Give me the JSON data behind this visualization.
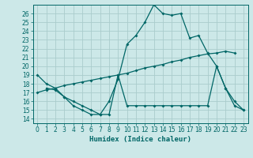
{
  "title": "",
  "xlabel": "Humidex (Indice chaleur)",
  "bg_color": "#cce8e8",
  "grid_color": "#aacccc",
  "line_color": "#006666",
  "xlim": [
    -0.5,
    23.5
  ],
  "ylim": [
    13.5,
    27.0
  ],
  "yticks": [
    14,
    15,
    16,
    17,
    18,
    19,
    20,
    21,
    22,
    23,
    24,
    25,
    26
  ],
  "xticks": [
    0,
    1,
    2,
    3,
    4,
    5,
    6,
    7,
    8,
    9,
    10,
    11,
    12,
    13,
    14,
    15,
    16,
    17,
    18,
    19,
    20,
    21,
    22,
    23
  ],
  "line1_x": [
    0,
    1,
    2,
    3,
    4,
    5,
    6,
    7,
    8,
    9,
    10,
    11,
    12,
    13,
    14,
    15,
    16,
    17,
    18,
    19,
    20,
    21,
    22,
    23
  ],
  "line1_y": [
    19,
    18,
    17.5,
    16.5,
    15.5,
    15,
    14.5,
    14.5,
    16,
    18.5,
    22.5,
    23.5,
    25,
    27,
    26,
    25.8,
    26,
    23.2,
    23.5,
    21.5,
    20,
    17.5,
    16,
    15
  ],
  "line2_x": [
    0,
    1,
    2,
    3,
    4,
    5,
    6,
    7,
    8,
    9,
    10,
    11,
    12,
    13,
    14,
    15,
    16,
    17,
    18,
    19,
    20,
    21,
    22
  ],
  "line2_y": [
    17,
    17.3,
    17.5,
    17.8,
    18.0,
    18.2,
    18.4,
    18.6,
    18.8,
    19.0,
    19.2,
    19.5,
    19.8,
    20.0,
    20.2,
    20.5,
    20.7,
    21.0,
    21.2,
    21.4,
    21.5,
    21.7,
    21.5
  ],
  "line3_x": [
    1,
    2,
    3,
    4,
    5,
    6,
    7,
    8,
    9,
    10,
    11,
    12,
    13,
    14,
    15,
    16,
    17,
    18,
    19,
    20,
    21,
    22,
    23
  ],
  "line3_y": [
    17.5,
    17.3,
    16.5,
    16.0,
    15.5,
    15.0,
    14.5,
    14.5,
    19.0,
    15.5,
    15.5,
    15.5,
    15.5,
    15.5,
    15.5,
    15.5,
    15.5,
    15.5,
    15.5,
    20.0,
    17.5,
    15.5,
    15.0
  ]
}
